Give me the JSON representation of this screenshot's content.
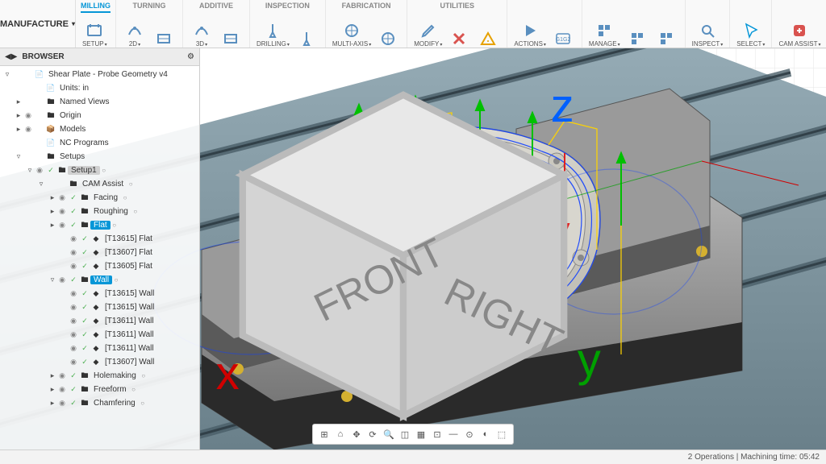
{
  "workspace": "MANUFACTURE",
  "ribbon_tabs": [
    "MILLING",
    "TURNING",
    "ADDITIVE",
    "INSPECTION",
    "FABRICATION",
    "UTILITIES"
  ],
  "active_tab": 0,
  "ribbon_groups": [
    {
      "tab_i": 0,
      "buttons": [
        {
          "label": "SETUP",
          "icon": "setup"
        }
      ]
    },
    {
      "tab_i": 0,
      "buttons": [
        {
          "label": "2D",
          "icon": "strat"
        },
        {
          "label": "",
          "icon": "strat2"
        }
      ]
    },
    {
      "tab_i": 0,
      "buttons": [
        {
          "label": "3D",
          "icon": "strat"
        },
        {
          "label": "",
          "icon": "strat2"
        }
      ]
    },
    {
      "tab_i": 0,
      "buttons": [
        {
          "label": "DRILLING",
          "icon": "drill"
        },
        {
          "label": "",
          "icon": "drill"
        }
      ]
    },
    {
      "tab_i": 0,
      "buttons": [
        {
          "label": "MULTI-AXIS",
          "icon": "multi"
        },
        {
          "label": "",
          "icon": "multi"
        }
      ]
    },
    {
      "tab_i": 0,
      "buttons": [
        {
          "label": "MODIFY",
          "icon": "pencil"
        },
        {
          "label": "",
          "icon": "xred"
        },
        {
          "label": "",
          "icon": "warn"
        }
      ]
    },
    {
      "tab_i": 0,
      "buttons": [
        {
          "label": "ACTIONS",
          "icon": "play"
        },
        {
          "label": "",
          "icon": "g1g2"
        }
      ]
    },
    {
      "tab_i": 0,
      "buttons": [
        {
          "label": "MANAGE",
          "icon": "manage"
        },
        {
          "label": "",
          "icon": "manage"
        },
        {
          "label": "",
          "icon": "manage"
        }
      ]
    },
    {
      "tab_i": 0,
      "buttons": [
        {
          "label": "INSPECT",
          "icon": "inspect"
        }
      ]
    },
    {
      "tab_i": 0,
      "buttons": [
        {
          "label": "SELECT",
          "icon": "cursor",
          "accent": true
        }
      ]
    },
    {
      "tab_i": 0,
      "buttons": [
        {
          "label": "CAM ASSIST",
          "icon": "assist",
          "red": true
        }
      ]
    }
  ],
  "browser_title": "BROWSER",
  "tree": [
    {
      "d": 0,
      "exp": "▿",
      "eye": "",
      "chk": "",
      "fld": "📄",
      "lbl": "Shear Plate - Probe Geometry v4",
      "sel": false
    },
    {
      "d": 1,
      "exp": "",
      "eye": "",
      "chk": "",
      "fld": "📄",
      "lbl": "Units: in",
      "sel": false
    },
    {
      "d": 1,
      "exp": "▸",
      "eye": "",
      "chk": "",
      "fld": "🖿",
      "lbl": "Named Views",
      "sel": false
    },
    {
      "d": 1,
      "exp": "▸",
      "eye": "👁",
      "chk": "",
      "fld": "🖿",
      "lbl": "Origin",
      "sel": false
    },
    {
      "d": 1,
      "exp": "▸",
      "eye": "👁",
      "chk": "",
      "fld": "📦",
      "lbl": "Models",
      "sel": false
    },
    {
      "d": 1,
      "exp": "",
      "eye": "",
      "chk": "",
      "fld": "📄",
      "lbl": "NC Programs",
      "sel": false
    },
    {
      "d": 1,
      "exp": "▿",
      "eye": "",
      "chk": "",
      "fld": "🖿",
      "lbl": "Setups",
      "sel": false
    },
    {
      "d": 2,
      "exp": "▿",
      "eye": "👁",
      "chk": "✓",
      "fld": "🖿",
      "lbl": "Setup1",
      "dot": "○",
      "hl": true
    },
    {
      "d": 3,
      "exp": "▿",
      "eye": "",
      "chk": "",
      "fld": "🖿",
      "lbl": "CAM Assist",
      "dot": "○"
    },
    {
      "d": 4,
      "exp": "▸",
      "eye": "👁",
      "chk": "✓",
      "fld": "🖿",
      "lbl": "Facing",
      "dot": "○"
    },
    {
      "d": 4,
      "exp": "▸",
      "eye": "👁",
      "chk": "✓",
      "fld": "🖿",
      "lbl": "Roughing",
      "dot": "○"
    },
    {
      "d": 4,
      "exp": "▸",
      "eye": "👁",
      "chk": "✓",
      "fld": "🖿",
      "lbl": "Flat",
      "dot": "○",
      "sel": true
    },
    {
      "d": 5,
      "exp": "",
      "eye": "👁",
      "chk": "✓",
      "fld": "◆",
      "lbl": "[T13615] Flat",
      "sel": false
    },
    {
      "d": 5,
      "exp": "",
      "eye": "👁",
      "chk": "✓",
      "fld": "◆",
      "lbl": "[T13607] Flat",
      "sel": false
    },
    {
      "d": 5,
      "exp": "",
      "eye": "👁",
      "chk": "✓",
      "fld": "◆",
      "lbl": "[T13605] Flat",
      "sel": false
    },
    {
      "d": 4,
      "exp": "▿",
      "eye": "👁",
      "chk": "✓",
      "fld": "🖿",
      "lbl": "Wall",
      "dot": "○",
      "sel": true
    },
    {
      "d": 5,
      "exp": "",
      "eye": "👁",
      "chk": "✓",
      "fld": "◆",
      "lbl": "[T13615] Wall"
    },
    {
      "d": 5,
      "exp": "",
      "eye": "👁",
      "chk": "✓",
      "fld": "◆",
      "lbl": "[T13615] Wall"
    },
    {
      "d": 5,
      "exp": "",
      "eye": "👁",
      "chk": "✓",
      "fld": "◆",
      "lbl": "[T13611] Wall"
    },
    {
      "d": 5,
      "exp": "",
      "eye": "👁",
      "chk": "✓",
      "fld": "◆",
      "lbl": "[T13611] Wall"
    },
    {
      "d": 5,
      "exp": "",
      "eye": "👁",
      "chk": "✓",
      "fld": "◆",
      "lbl": "[T13611] Wall"
    },
    {
      "d": 5,
      "exp": "",
      "eye": "👁",
      "chk": "✓",
      "fld": "◆",
      "lbl": "[T13607] Wall"
    },
    {
      "d": 4,
      "exp": "▸",
      "eye": "👁",
      "chk": "✓",
      "fld": "🖿",
      "lbl": "Holemaking",
      "dot": "○"
    },
    {
      "d": 4,
      "exp": "▸",
      "eye": "👁",
      "chk": "✓",
      "fld": "🖿",
      "lbl": "Freeform",
      "dot": "○"
    },
    {
      "d": 4,
      "exp": "▸",
      "eye": "👁",
      "chk": "✓",
      "fld": "🖿",
      "lbl": "Chamfering",
      "dot": "○"
    }
  ],
  "status_text": "2 Operations | Machining time: 05:42",
  "nav_buttons": [
    "⊞",
    "⌂",
    "✥",
    "⟳",
    "🔍",
    "◫",
    "▦",
    "⊡",
    "—",
    "⊙",
    "◐",
    "⬚"
  ],
  "colors": {
    "accent": "#0696d7",
    "toolpath_blue": "#1040ff",
    "toolpath_yellow": "#ffd400",
    "rapid_green": "#00c000",
    "rapid_red": "#e02020",
    "part_light": "#e4e2db",
    "part_mid": "#c6c4bc",
    "part_dark": "#9a988f",
    "fixture": "#8a8a8a",
    "fixture_dark": "#2a2a2a",
    "table": "#7e949e",
    "table_dark": "#5a6e78",
    "axis_x": "#d00000",
    "axis_y": "#00a000",
    "axis_z": "#0060ff"
  },
  "viewcube": {
    "front": "FRONT",
    "right": "RIGHT"
  }
}
